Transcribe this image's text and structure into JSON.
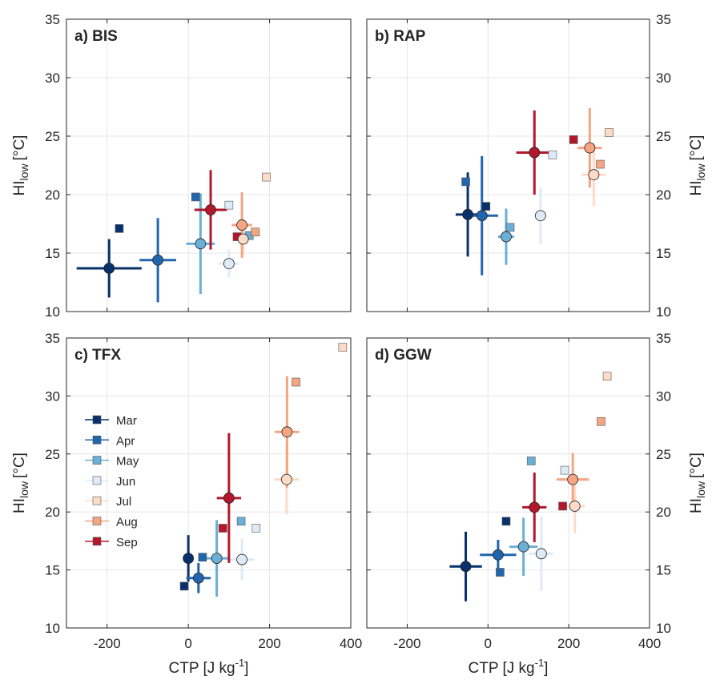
{
  "months": [
    {
      "name": "Mar",
      "color": "#08306b"
    },
    {
      "name": "Apr",
      "color": "#2166ac"
    },
    {
      "name": "May",
      "color": "#6baed6"
    },
    {
      "name": "Jun",
      "color": "#deebf7"
    },
    {
      "name": "Jul",
      "color": "#fddbc7"
    },
    {
      "name": "Aug",
      "color": "#f4a582"
    },
    {
      "name": "Sep",
      "color": "#b2182b"
    }
  ],
  "chart_data": [
    {
      "type": "scatter",
      "title": "a) BIS",
      "xlabel": "",
      "ylabel": "HI",
      "ylabel_sub": "low",
      "ylabel_unit": "[°C]",
      "xlim": [
        -300,
        400
      ],
      "ylim": [
        10,
        35
      ],
      "xticks": [
        "-200",
        "0",
        "200",
        "400"
      ],
      "yticks": [
        "10",
        "15",
        "20",
        "25",
        "30",
        "35"
      ],
      "grid": true,
      "circles": [
        {
          "month": "Mar",
          "x": -195,
          "y": 13.7,
          "xerr": 80,
          "yerr": 2.5
        },
        {
          "month": "Apr",
          "x": -75,
          "y": 14.4,
          "xerr": 45,
          "yerr": 3.6
        },
        {
          "month": "May",
          "x": 30,
          "y": 15.8,
          "xerr": 35,
          "yerr": 4.3
        },
        {
          "month": "Jun",
          "x": 100,
          "y": 14.1,
          "xerr": 25,
          "yerr": 1.2
        },
        {
          "month": "Jul",
          "x": 135,
          "y": 16.2,
          "xerr": 15,
          "yerr": 1.3
        },
        {
          "month": "Aug",
          "x": 132,
          "y": 17.4,
          "xerr": 25,
          "yerr": 2.8
        },
        {
          "month": "Sep",
          "x": 55,
          "y": 18.7,
          "xerr": 40,
          "yerr": 3.4
        }
      ],
      "squares": [
        {
          "month": "Mar",
          "x": -170,
          "y": 17.1
        },
        {
          "month": "Apr",
          "x": 18,
          "y": 19.8
        },
        {
          "month": "May",
          "x": 150,
          "y": 16.5
        },
        {
          "month": "Jun",
          "x": 100,
          "y": 19.1
        },
        {
          "month": "Jul",
          "x": 192,
          "y": 21.5
        },
        {
          "month": "Aug",
          "x": 165,
          "y": 16.8
        },
        {
          "month": "Sep",
          "x": 120,
          "y": 16.4
        }
      ]
    },
    {
      "type": "scatter",
      "title": "b) RAP",
      "xlabel": "",
      "ylabel": "HI",
      "ylabel_sub": "low",
      "ylabel_unit": "[°C]",
      "xlim": [
        -300,
        400
      ],
      "ylim": [
        10,
        35
      ],
      "xticks": [
        "-200",
        "0",
        "200",
        "400"
      ],
      "yticks": [
        "10",
        "15",
        "20",
        "25",
        "30",
        "35"
      ],
      "grid": true,
      "circles": [
        {
          "month": "Mar",
          "x": -50,
          "y": 18.3,
          "xerr": 30,
          "yerr": 3.6
        },
        {
          "month": "Apr",
          "x": -15,
          "y": 18.2,
          "xerr": 40,
          "yerr": 5.1
        },
        {
          "month": "May",
          "x": 45,
          "y": 16.4,
          "xerr": 20,
          "yerr": 2.4
        },
        {
          "month": "Jun",
          "x": 130,
          "y": 18.2,
          "xerr": 15,
          "yerr": 2.4
        },
        {
          "month": "Jul",
          "x": 262,
          "y": 21.7,
          "xerr": 30,
          "yerr": 2.7
        },
        {
          "month": "Aug",
          "x": 252,
          "y": 24.0,
          "xerr": 30,
          "yerr": 3.4
        },
        {
          "month": "Sep",
          "x": 115,
          "y": 23.6,
          "xerr": 45,
          "yerr": 3.6
        }
      ],
      "squares": [
        {
          "month": "Mar",
          "x": -5,
          "y": 19.0
        },
        {
          "month": "Apr",
          "x": -55,
          "y": 21.1
        },
        {
          "month": "May",
          "x": 55,
          "y": 17.2
        },
        {
          "month": "Jun",
          "x": 160,
          "y": 23.4
        },
        {
          "month": "Jul",
          "x": 300,
          "y": 25.3
        },
        {
          "month": "Aug",
          "x": 278,
          "y": 22.6
        },
        {
          "month": "Sep",
          "x": 212,
          "y": 24.7
        }
      ]
    },
    {
      "type": "scatter",
      "title": "c) TFX",
      "xlabel": "CTP [J kg-1]",
      "ylabel": "HI",
      "ylabel_sub": "low",
      "ylabel_unit": "[°C]",
      "xlim": [
        -300,
        400
      ],
      "ylim": [
        10,
        35
      ],
      "xticks": [
        "-200",
        "0",
        "200",
        "400"
      ],
      "yticks": [
        "10",
        "15",
        "20",
        "25",
        "30",
        "35"
      ],
      "grid": true,
      "circles": [
        {
          "month": "Mar",
          "x": 0,
          "y": 16.0,
          "xerr": 10,
          "yerr": 2.0
        },
        {
          "month": "Apr",
          "x": 25,
          "y": 14.3,
          "xerr": 30,
          "yerr": 1.3
        },
        {
          "month": "May",
          "x": 70,
          "y": 16.0,
          "xerr": 30,
          "yerr": 3.3
        },
        {
          "month": "Jun",
          "x": 132,
          "y": 15.9,
          "xerr": 30,
          "yerr": 1.8
        },
        {
          "month": "Jul",
          "x": 242,
          "y": 22.8,
          "xerr": 30,
          "yerr": 3.0
        },
        {
          "month": "Aug",
          "x": 243,
          "y": 26.9,
          "xerr": 30,
          "yerr": 4.8
        },
        {
          "month": "Sep",
          "x": 100,
          "y": 21.2,
          "xerr": 30,
          "yerr": 5.6
        }
      ],
      "squares": [
        {
          "month": "Mar",
          "x": -10,
          "y": 13.6
        },
        {
          "month": "Apr",
          "x": 35,
          "y": 16.1
        },
        {
          "month": "May",
          "x": 130,
          "y": 19.2
        },
        {
          "month": "Jun",
          "x": 167,
          "y": 18.6
        },
        {
          "month": "Jul",
          "x": 380,
          "y": 34.2
        },
        {
          "month": "Aug",
          "x": 265,
          "y": 31.2
        },
        {
          "month": "Sep",
          "x": 85,
          "y": 18.6
        }
      ]
    },
    {
      "type": "scatter",
      "title": "d) GGW",
      "xlabel": "CTP [J kg-1]",
      "ylabel": "HI",
      "ylabel_sub": "low",
      "ylabel_unit": "[°C]",
      "xlim": [
        -300,
        400
      ],
      "ylim": [
        10,
        35
      ],
      "xticks": [
        "-200",
        "0",
        "200",
        "400"
      ],
      "yticks": [
        "10",
        "15",
        "20",
        "25",
        "30",
        "35"
      ],
      "grid": true,
      "circles": [
        {
          "month": "Mar",
          "x": -55,
          "y": 15.3,
          "xerr": 40,
          "yerr": 3.0
        },
        {
          "month": "Apr",
          "x": 25,
          "y": 16.3,
          "xerr": 45,
          "yerr": 1.3
        },
        {
          "month": "May",
          "x": 88,
          "y": 17.0,
          "xerr": 35,
          "yerr": 2.5
        },
        {
          "month": "Jun",
          "x": 132,
          "y": 16.4,
          "xerr": 30,
          "yerr": 3.2
        },
        {
          "month": "Jul",
          "x": 215,
          "y": 20.5,
          "xerr": 25,
          "yerr": 2.3
        },
        {
          "month": "Aug",
          "x": 210,
          "y": 22.8,
          "xerr": 40,
          "yerr": 2.3
        },
        {
          "month": "Sep",
          "x": 115,
          "y": 20.4,
          "xerr": 30,
          "yerr": 3.0
        }
      ],
      "squares": [
        {
          "month": "Mar",
          "x": 45,
          "y": 19.2
        },
        {
          "month": "Apr",
          "x": 30,
          "y": 14.8
        },
        {
          "month": "May",
          "x": 107,
          "y": 24.4
        },
        {
          "month": "Jun",
          "x": 190,
          "y": 23.6
        },
        {
          "month": "Jul",
          "x": 295,
          "y": 31.7
        },
        {
          "month": "Aug",
          "x": 280,
          "y": 27.8
        },
        {
          "month": "Sep",
          "x": 185,
          "y": 20.5
        }
      ]
    }
  ]
}
